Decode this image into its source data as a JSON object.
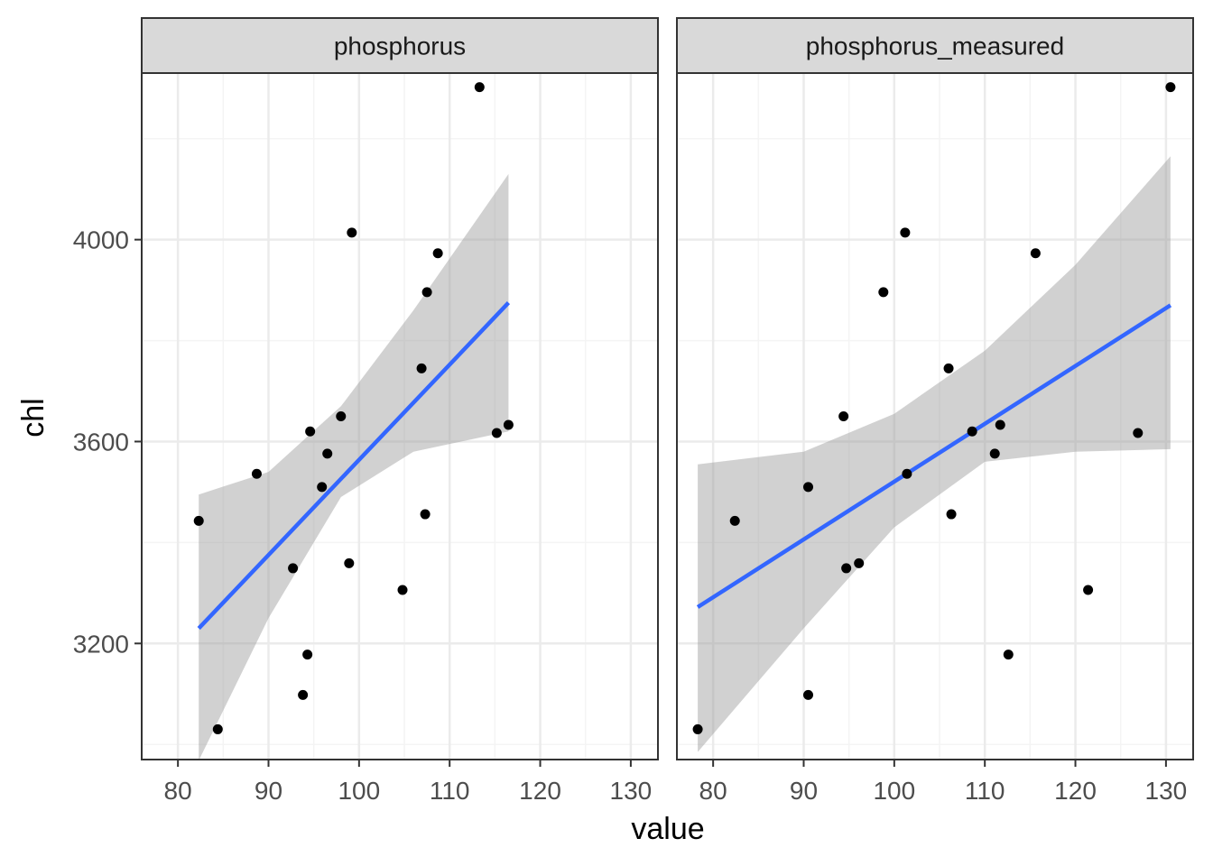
{
  "colors": {
    "background": "#ffffff",
    "panel_border": "#333333",
    "strip_fill": "#d9d9d9",
    "grid_major": "#ebebeb",
    "grid_minor": "#f4f4f4",
    "points": "#000000",
    "fit_line": "#3366ff",
    "ci_band": "#999999"
  },
  "chart_data": {
    "type": "scatter",
    "facet_type": "facet_wrap",
    "xlabel": "value",
    "ylabel": "chl",
    "xlim": [
      76,
      133
    ],
    "ylim": [
      2970,
      4330
    ],
    "x_ticks": [
      80,
      90,
      100,
      110,
      120,
      130
    ],
    "y_ticks": [
      3200,
      3600,
      4000
    ],
    "grid": true,
    "smooth": "linear fit with confidence band",
    "panels": [
      {
        "strip_label": "phosphorus",
        "points": [
          {
            "x": 82.3,
            "y": 3443
          },
          {
            "x": 84.4,
            "y": 3030
          },
          {
            "x": 88.7,
            "y": 3536
          },
          {
            "x": 92.7,
            "y": 3349
          },
          {
            "x": 93.8,
            "y": 3098
          },
          {
            "x": 94.3,
            "y": 3178
          },
          {
            "x": 94.6,
            "y": 3620
          },
          {
            "x": 95.9,
            "y": 3510
          },
          {
            "x": 96.5,
            "y": 3576
          },
          {
            "x": 98.0,
            "y": 3650
          },
          {
            "x": 98.9,
            "y": 3359
          },
          {
            "x": 99.2,
            "y": 4014
          },
          {
            "x": 104.8,
            "y": 3306
          },
          {
            "x": 106.9,
            "y": 3745
          },
          {
            "x": 107.3,
            "y": 3456
          },
          {
            "x": 107.5,
            "y": 3896
          },
          {
            "x": 108.7,
            "y": 3973
          },
          {
            "x": 113.3,
            "y": 4302
          },
          {
            "x": 115.2,
            "y": 3617
          },
          {
            "x": 116.5,
            "y": 3633
          }
        ],
        "fit": {
          "x": [
            82.3,
            116.5
          ],
          "y": [
            3230,
            3875
          ]
        },
        "ci_band": {
          "x": [
            82.3,
            90,
            98,
            106,
            116.5
          ],
          "lower": [
            2968,
            3250,
            3490,
            3580,
            3620
          ],
          "upper": [
            3495,
            3540,
            3670,
            3860,
            4130
          ]
        }
      },
      {
        "strip_label": "phosphorus_measured",
        "points": [
          {
            "x": 78.3,
            "y": 3030
          },
          {
            "x": 82.4,
            "y": 3443
          },
          {
            "x": 90.5,
            "y": 3510
          },
          {
            "x": 90.5,
            "y": 3098
          },
          {
            "x": 94.4,
            "y": 3650
          },
          {
            "x": 94.7,
            "y": 3349
          },
          {
            "x": 96.1,
            "y": 3359
          },
          {
            "x": 98.8,
            "y": 3896
          },
          {
            "x": 101.2,
            "y": 4014
          },
          {
            "x": 101.4,
            "y": 3536
          },
          {
            "x": 106.0,
            "y": 3745
          },
          {
            "x": 106.3,
            "y": 3456
          },
          {
            "x": 108.6,
            "y": 3620
          },
          {
            "x": 111.1,
            "y": 3576
          },
          {
            "x": 111.7,
            "y": 3633
          },
          {
            "x": 112.6,
            "y": 3178
          },
          {
            "x": 115.6,
            "y": 3973
          },
          {
            "x": 121.4,
            "y": 3306
          },
          {
            "x": 126.9,
            "y": 3617
          },
          {
            "x": 130.5,
            "y": 4302
          }
        ],
        "fit": {
          "x": [
            78.3,
            130.5
          ],
          "y": [
            3272,
            3870
          ]
        },
        "ci_band": {
          "x": [
            78.3,
            90,
            100,
            110,
            120,
            130.5
          ],
          "lower": [
            2985,
            3230,
            3430,
            3560,
            3580,
            3585
          ],
          "upper": [
            3555,
            3580,
            3655,
            3780,
            3950,
            4165
          ]
        }
      }
    ]
  }
}
